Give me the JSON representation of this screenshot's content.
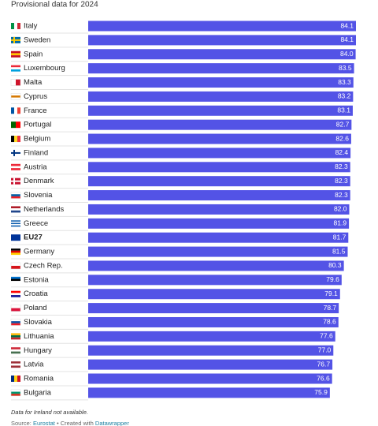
{
  "chart_data": {
    "type": "bar",
    "orientation": "horizontal",
    "subtitle": "Provisional data for 2024",
    "categories": [
      "Italy",
      "Sweden",
      "Spain",
      "Luxembourg",
      "Malta",
      "Cyprus",
      "France",
      "Portugal",
      "Belgium",
      "Finland",
      "Austria",
      "Denmark",
      "Slovenia",
      "Netherlands",
      "Greece",
      "EU27",
      "Germany",
      "Czech Rep.",
      "Estonia",
      "Croatia",
      "Poland",
      "Slovakia",
      "Lithuania",
      "Hungary",
      "Latvia",
      "Romania",
      "Bulgaria"
    ],
    "values": [
      84.1,
      84.1,
      84.0,
      83.5,
      83.3,
      83.2,
      83.1,
      82.7,
      82.6,
      82.4,
      82.3,
      82.3,
      82.3,
      82.0,
      81.9,
      81.7,
      81.5,
      80.3,
      79.6,
      79.1,
      78.7,
      78.6,
      77.6,
      77.0,
      76.7,
      76.6,
      75.9
    ],
    "value_labels": [
      "84.1",
      "84.1",
      "84.0",
      "83.5",
      "83.3",
      "83.2",
      "83.1",
      "82.7",
      "82.6",
      "82.4",
      "82.3",
      "82.3",
      "82.3",
      "82.0",
      "81.9",
      "81.7",
      "81.5",
      "80.3",
      "79.6",
      "79.1",
      "78.7",
      "78.6",
      "77.6",
      "77.0",
      "76.7",
      "76.6",
      "75.9"
    ],
    "highlight": "EU27",
    "color": "#5353e6",
    "note": "Data for Ireland not available.",
    "source_label": "Source:",
    "source_name": "Eurostat",
    "credit_label": "• Created with",
    "credit_name": "Datawrapper"
  }
}
